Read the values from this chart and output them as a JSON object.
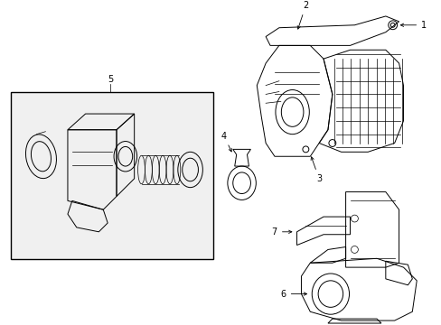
{
  "background_color": "#ffffff",
  "line_color": "#000000",
  "fig_width": 4.89,
  "fig_height": 3.6,
  "dpi": 100,
  "gray_fill": "#e8e8e8"
}
